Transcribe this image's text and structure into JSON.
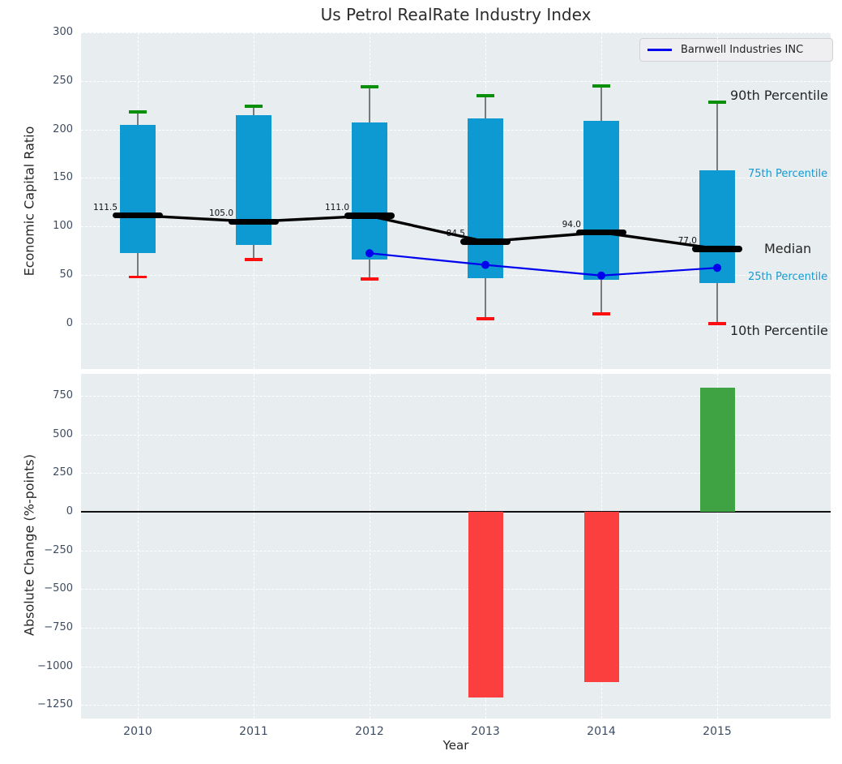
{
  "title": "Us Petrol RealRate Industry Index",
  "legend": {
    "label": "Barnwell Industries INC"
  },
  "axes": {
    "top_ylabel": "Economic Capital Ratio",
    "bottom_ylabel": "Absolute Change (%-points)",
    "xlabel": "Year"
  },
  "colors": {
    "box_fill": "#0d9ad2",
    "median_line": "#000000",
    "company_line": "#0000ee",
    "p90_cap": "#0a8f0a",
    "p10_cap": "#fb0f0f",
    "bar_negative": "#fb3e3e",
    "bar_positive": "#3fa344",
    "plot_background": "#e8edf0",
    "grid": "#ffffff",
    "tick_text": "#3d4c63",
    "percentile_accent_text": "#149bd3",
    "dark_text": "#262626"
  },
  "right_labels": [
    {
      "text": "90th Percentile",
      "series": "90th Percentile",
      "color_style": "dark"
    },
    {
      "text": "75th Percentile",
      "series": "75th Percentile",
      "color_style": "cyan"
    },
    {
      "text": "Median",
      "series": "Median",
      "color_style": "dark"
    },
    {
      "text": "25th Percentile",
      "series": "25th Percentile",
      "color_style": "cyan"
    },
    {
      "text": "10th Percentile",
      "series": "10th Percentile",
      "color_style": "dark"
    }
  ],
  "chart_data": [
    {
      "type": "box",
      "title": "Us Petrol RealRate Industry Index",
      "ylabel": "Economic Capital Ratio",
      "categories": [
        "2010",
        "2011",
        "2012",
        "2013",
        "2014",
        "2015"
      ],
      "series": [
        {
          "name": "90th Percentile",
          "values": [
            218,
            224,
            244,
            235,
            245,
            228
          ]
        },
        {
          "name": "75th Percentile",
          "values": [
            205,
            215,
            207,
            211,
            209,
            158
          ]
        },
        {
          "name": "Median",
          "values": [
            111.5,
            105.0,
            111.0,
            84.5,
            94.0,
            77.0
          ]
        },
        {
          "name": "25th Percentile",
          "values": [
            73,
            81,
            66,
            47,
            45,
            42
          ]
        },
        {
          "name": "10th Percentile",
          "values": [
            48,
            66,
            46,
            5,
            10,
            0
          ]
        },
        {
          "name": "Barnwell Industries INC",
          "values": [
            null,
            null,
            72.5,
            60.5,
            49.5,
            57.5
          ]
        }
      ],
      "median_labels": [
        "111.5",
        "105.0",
        "111.0",
        "84.5",
        "94.0",
        "77.0"
      ],
      "yticks": [
        300,
        250,
        200,
        150,
        100,
        50,
        0
      ],
      "ylim": [
        -48,
        300
      ],
      "grid": true,
      "legend_position": "upper right",
      "legend_entries": [
        "Barnwell Industries INC"
      ]
    },
    {
      "type": "bar",
      "ylabel": "Absolute Change (%-points)",
      "xlabel": "Year",
      "categories": [
        "2010",
        "2011",
        "2012",
        "2013",
        "2014",
        "2015"
      ],
      "values": [
        null,
        null,
        null,
        -1200,
        -1100,
        800
      ],
      "yticks": [
        750,
        500,
        250,
        0,
        -250,
        -500,
        -750,
        -1000,
        -1250
      ],
      "ylim": [
        -1337,
        891
      ],
      "grid": true,
      "zero_line": true
    }
  ]
}
